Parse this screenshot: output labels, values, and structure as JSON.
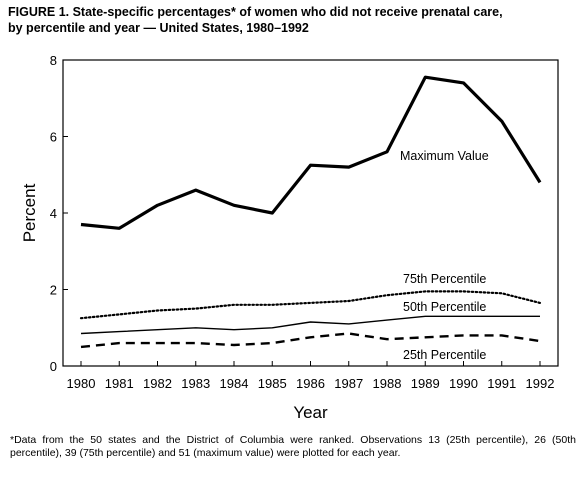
{
  "title_line1": "FIGURE 1. State-specific percentages* of women who did not receive prenatal care,",
  "title_line2": "by percentile and year — United States, 1980–1992",
  "footnote": "*Data from the 50 states and the District of Columbia were ranked. Observations 13 (25th percentile), 26 (50th percentile), 39 (75th percentile) and 51 (maximum value) were plotted for each year.",
  "chart_data": {
    "type": "line",
    "title": "FIGURE 1. State-specific percentages* of women who did not receive prenatal care, by percentile and year — United States, 1980–1992",
    "xlabel": "Year",
    "ylabel": "Percent",
    "x": [
      1980,
      1981,
      1982,
      1983,
      1984,
      1985,
      1986,
      1987,
      1988,
      1989,
      1990,
      1991,
      1992
    ],
    "ylim": [
      0,
      8
    ],
    "yticks": [
      0,
      2,
      4,
      6,
      8
    ],
    "grid": false,
    "legend": "inline labels",
    "series": [
      {
        "name": "Maximum Value",
        "style": "solid-thick",
        "values": [
          3.7,
          3.6,
          4.2,
          4.6,
          4.2,
          4.0,
          5.25,
          5.2,
          5.6,
          7.55,
          7.4,
          6.4,
          4.8
        ]
      },
      {
        "name": "75th Percentile",
        "style": "dotted",
        "values": [
          1.25,
          1.35,
          1.45,
          1.5,
          1.6,
          1.6,
          1.65,
          1.7,
          1.85,
          1.95,
          1.95,
          1.9,
          1.65
        ]
      },
      {
        "name": "50th Percentile",
        "style": "solid-thin",
        "values": [
          0.85,
          0.9,
          0.95,
          1.0,
          0.95,
          1.0,
          1.15,
          1.1,
          1.2,
          1.3,
          1.3,
          1.3,
          1.3
        ]
      },
      {
        "name": "25th Percentile",
        "style": "dashed",
        "values": [
          0.5,
          0.6,
          0.6,
          0.6,
          0.55,
          0.6,
          0.75,
          0.85,
          0.7,
          0.75,
          0.8,
          0.8,
          0.65
        ]
      }
    ]
  }
}
